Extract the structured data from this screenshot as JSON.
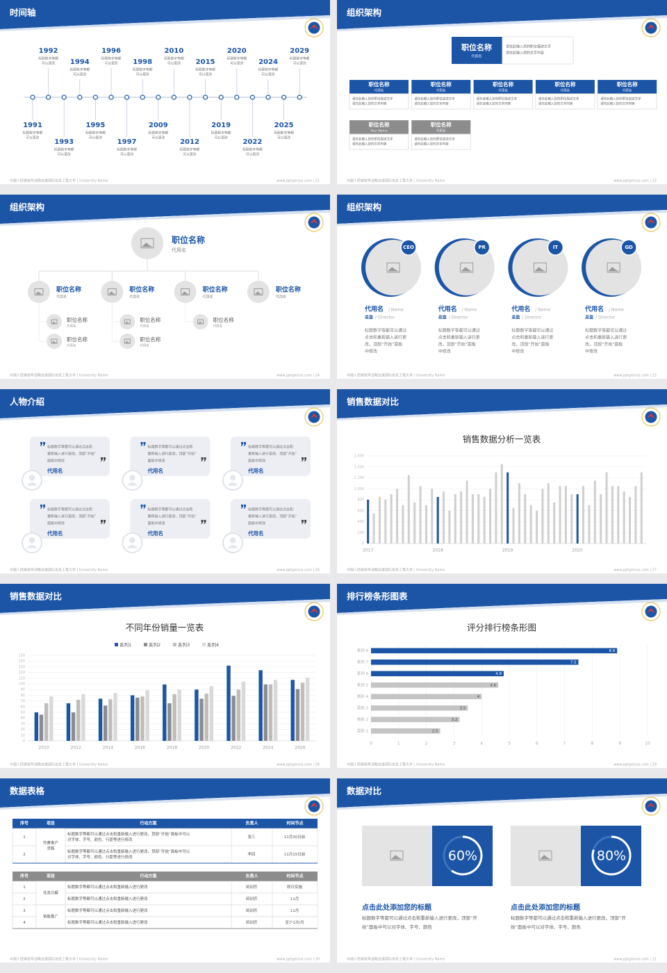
{
  "slides": [
    {
      "title": "时间轴",
      "footer": "中国人民解放军战略支援部队信息工程大学 | University Name",
      "site": "www.pptgenius.com | 22",
      "events": [
        {
          "year": "1991",
          "text": [
            "标题数字等都",
            "可以更改"
          ]
        },
        {
          "year": "1992",
          "text": [
            "标题数字等都",
            "可以更改"
          ]
        },
        {
          "year": "1993",
          "text": [
            "标题数字等都",
            "可以更改"
          ]
        },
        {
          "year": "1994",
          "text": [
            "标题数字等都",
            "可以更改"
          ]
        },
        {
          "year": "1995",
          "text": [
            "标题数字等都",
            "可以更改"
          ]
        },
        {
          "year": "1996",
          "text": [
            "标题数字等都",
            "可以更改"
          ]
        },
        {
          "year": "1997",
          "text": [
            "标题数字等都",
            "可以更改"
          ]
        },
        {
          "year": "1998",
          "text": [
            "标题数字等都",
            "可以更改"
          ]
        },
        {
          "year": "2009",
          "text": [
            "标题数字等都",
            "可以更改"
          ]
        },
        {
          "year": "2010",
          "text": [
            "标题数字等都",
            "可以更改"
          ]
        },
        {
          "year": "2012",
          "text": [
            "标题数字等都",
            "可以更改"
          ]
        },
        {
          "year": "2015",
          "text": [
            "标题数字等都",
            "可以更改"
          ]
        },
        {
          "year": "2019",
          "text": [
            "标题数字等都",
            "可以更改"
          ]
        },
        {
          "year": "2020",
          "text": [
            "标题数字等都",
            "可以更改"
          ]
        },
        {
          "year": "2022",
          "text": [
            "标题数字等都",
            "可以更改"
          ]
        },
        {
          "year": "2024",
          "text": [
            "标题数字等都",
            "可以更改"
          ]
        },
        {
          "year": "2025",
          "text": [
            "标题数字等都",
            "可以更改"
          ]
        },
        {
          "year": "2029",
          "text": [
            "标题数字等都",
            "可以更改"
          ]
        }
      ]
    },
    {
      "title": "组织架构",
      "footer": "中国人民解放军战略支援部队信息工程大学 | University Name",
      "site": "www.pptgenius.com | 23",
      "org": {
        "top": {
          "title": "职位名称",
          "name": "代用名",
          "desc": [
            "请在此输入您的职位描述文字",
            "请在此输入您的文字内容"
          ]
        },
        "rows": [
          {
            "color": "#1c55a6",
            "boxes": [
              {
                "title": "职位名称",
                "name": "代用名",
                "desc": [
                  "请在此输入您的职位描述文字",
                  "请在此输入您的文字内容"
                ]
              },
              {
                "title": "职位名称",
                "name": "代用名",
                "desc": [
                  "请在此输入您的职位描述文字",
                  "请在此输入您的文字内容"
                ]
              },
              {
                "title": "职位名称",
                "name": "代用名",
                "desc": [
                  "请在此输入您的职位描述文字",
                  "请在此输入您的文字内容"
                ]
              },
              {
                "title": "职位名称",
                "name": "代用名",
                "desc": [
                  "请在此输入您的职位描述文字",
                  "请在此输入您的文字内容"
                ]
              },
              {
                "title": "职位名称",
                "name": "代用名",
                "desc": [
                  "请在此输入您的职位描述文字",
                  "请在此输入您的文字内容"
                ]
              }
            ]
          },
          {
            "color": "#8c8c8c",
            "boxes": [
              {
                "title": "职位名称",
                "name": "Your Name",
                "desc": [
                  "请在此输入您的职位描述文字",
                  "请在此输入您的文字内容"
                ]
              },
              {
                "title": "职位名称",
                "name": "代用名",
                "desc": [
                  "请在此输入您的职位描述文字",
                  "请在此输入您的文字内容"
                ]
              }
            ]
          }
        ]
      }
    },
    {
      "title": "组织架构",
      "footer": "中国人民解放军战略支援部队信息工程大学 | University Name",
      "site": "www.pptgenius.com | 24",
      "tree": {
        "title": "职位名称",
        "name": "代用名",
        "children": [
          {
            "title": "职位名称",
            "name": "代用名",
            "children": [
              {
                "title": "职位名称",
                "name": "代用名"
              },
              {
                "title": "职位名称",
                "name": "代用名"
              }
            ]
          },
          {
            "title": "职位名称",
            "name": "代用名",
            "children": [
              {
                "title": "职位名称",
                "name": "代用名"
              },
              {
                "title": "职位名称",
                "name": "代用名"
              }
            ]
          },
          {
            "title": "职位名称",
            "name": "代用名",
            "children": [
              {
                "title": "职位名称",
                "name": "代用名"
              }
            ]
          },
          {
            "title": "职位名称",
            "name": "代用名",
            "children": []
          }
        ]
      }
    },
    {
      "title": "组织架构",
      "footer": "中国人民解放军战略支援部队信息工程大学 | University Name",
      "site": "www.pptgenius.com | 25",
      "people": [
        {
          "badge": "CEO",
          "name": "代用名",
          "name_en": "/ Name",
          "role": "总监",
          "role_en": "/ Director",
          "desc": [
            "标题数字等都可以通过",
            "点击和重新输入进行更",
            "改，顶部“开始”面板",
            "中修改"
          ]
        },
        {
          "badge": "PR",
          "name": "代用名",
          "name_en": "/ Name",
          "role": "总监",
          "role_en": "/ Director",
          "desc": [
            "标题数字等都可以通过",
            "点击和重新输入进行更",
            "改，顶部“开始”面板",
            "中修改"
          ]
        },
        {
          "badge": "IT",
          "name": "代用名",
          "name_en": "/ Name",
          "role": "总监",
          "role_en": "/ Director",
          "desc": [
            "标题数字等都可以通过",
            "点击和重新输入进行更",
            "改，顶部“开始”面板",
            "中修改"
          ]
        },
        {
          "badge": "GD",
          "name": "代用名",
          "name_en": "/ Name",
          "role": "总监",
          "role_en": "/ Director",
          "desc": [
            "标题数字等都可以通过",
            "点击和重新输入进行更",
            "改，顶部“开始”面板",
            "中修改"
          ]
        }
      ]
    },
    {
      "title": "人物介绍",
      "footer": "中国人民解放军战略支援部队信息工程大学 | University Name",
      "site": "www.pptgenius.com | 26",
      "quotes": [
        {
          "text": [
            "标题数字等都可以通过点击和",
            "重新输入进行更改，顶部“开始”",
            "面板中修改"
          ],
          "name": "代用名"
        },
        {
          "text": [
            "标题数字等都可以通过点击和",
            "重新输入进行更改，顶部“开始”",
            "面板中修改"
          ],
          "name": "代用名"
        },
        {
          "text": [
            "标题数字等都可以通过点击和",
            "重新输入进行更改，顶部“开始”",
            "面板中修改"
          ],
          "name": "代用名"
        },
        {
          "text": [
            "标题数字等都可以通过点击和",
            "重新输入进行更改，顶部“开始”",
            "面板中修改"
          ],
          "name": "代用名"
        },
        {
          "text": [
            "标题数字等都可以通过点击和",
            "重新输入进行更改，顶部“开始”",
            "面板中修改"
          ],
          "name": "代用名"
        },
        {
          "text": [
            "标题数字等都可以通过点击和",
            "重新输入进行更改，顶部“开始”",
            "面板中修改"
          ],
          "name": "代用名"
        }
      ]
    },
    {
      "title": "销售数据对比",
      "footer": "中国人民解放军战略支援部队信息工程大学 | University Name",
      "site": "www.pptgenius.com | 27",
      "chart": {
        "type": "bar",
        "title": "销售数据分析一览表",
        "categories": [
          "2017",
          null,
          null,
          null,
          null,
          null,
          null,
          null,
          null,
          null,
          null,
          null,
          "2018",
          null,
          null,
          null,
          null,
          null,
          null,
          null,
          null,
          null,
          null,
          null,
          "2019",
          null,
          null,
          null,
          null,
          null,
          null,
          null,
          null,
          null,
          null,
          null,
          "2020",
          null,
          null,
          null,
          null,
          null,
          null,
          null,
          null,
          null,
          null,
          null
        ],
        "values": [
          800,
          550,
          850,
          800,
          900,
          1000,
          700,
          1250,
          750,
          1050,
          700,
          1000,
          850,
          950,
          600,
          900,
          950,
          1150,
          900,
          900,
          850,
          1000,
          1300,
          1450,
          1300,
          650,
          1100,
          900,
          700,
          600,
          1000,
          1100,
          750,
          1050,
          1050,
          900,
          900,
          1050,
          700,
          1150,
          900,
          1300,
          1050,
          1050,
          950,
          850,
          1050,
          1300
        ],
        "colors": [
          "#1c55a6",
          "#cfcfcf",
          "#cfcfcf",
          "#cfcfcf",
          "#cfcfcf",
          "#cfcfcf",
          "#cfcfcf",
          "#cfcfcf",
          "#cfcfcf",
          "#cfcfcf",
          "#cfcfcf",
          "#cfcfcf",
          "#1c55a6",
          "#cfcfcf",
          "#cfcfcf",
          "#cfcfcf",
          "#cfcfcf",
          "#cfcfcf",
          "#cfcfcf",
          "#cfcfcf",
          "#cfcfcf",
          "#cfcfcf",
          "#cfcfcf",
          "#cfcfcf",
          "#1c55a6",
          "#cfcfcf",
          "#cfcfcf",
          "#cfcfcf",
          "#cfcfcf",
          "#cfcfcf",
          "#cfcfcf",
          "#cfcfcf",
          "#cfcfcf",
          "#cfcfcf",
          "#cfcfcf",
          "#cfcfcf",
          "#1c55a6",
          "#cfcfcf",
          "#cfcfcf",
          "#cfcfcf",
          "#cfcfcf",
          "#cfcfcf",
          "#cfcfcf",
          "#cfcfcf",
          "#cfcfcf",
          "#cfcfcf",
          "#cfcfcf",
          "#cfcfcf"
        ],
        "ylim": [
          0,
          1600
        ],
        "yticks": [
          0,
          200,
          400,
          600,
          800,
          {
            "value": 1000,
            "label": "1,000"
          },
          {
            "value": 1200,
            "label": "1,200"
          },
          {
            "value": 1400,
            "label": "1,400"
          },
          {
            "value": 1600,
            "label": "1,600"
          }
        ],
        "grid": true
      }
    },
    {
      "title": "销售数据对比",
      "footer": "中国人民解放军战略支援部队信息工程大学 | University Name",
      "site": "www.pptgenius.com | 28",
      "chart": {
        "type": "bar",
        "title": "不同年份销量一览表",
        "categories": [
          "2010",
          "2012",
          "2014",
          "2016",
          "2018",
          "2020",
          "2022",
          "2024",
          "2026"
        ],
        "series": [
          {
            "name": "系列1",
            "color": "#1c55a6",
            "values": [
              50,
              66,
              74,
              80,
              99,
              90,
              132,
              124,
              107
            ]
          },
          {
            "name": "系列2",
            "color": "#8c8c8c",
            "values": [
              46,
              50,
              62,
              76,
              66,
              74,
              79,
              99,
              91
            ]
          },
          {
            "name": "系列3",
            "color": "#bdbdbd",
            "values": [
              66,
              72,
              73,
              78,
              82,
              83,
              90,
              99,
              102
            ]
          },
          {
            "name": "系列4",
            "color": "#d9d9d9",
            "values": [
              78,
              82,
              84,
              89,
              90,
              96,
              104,
              107,
              111
            ]
          }
        ],
        "ylim": [
          0,
          150
        ],
        "yticks": [
          0,
          10,
          20,
          30,
          40,
          50,
          60,
          70,
          80,
          90,
          100,
          110,
          120,
          130,
          140,
          150
        ],
        "grid": true
      }
    },
    {
      "title": "排行榜条形图表",
      "footer": "中国人民解放军战略支援部队信息工程大学 | University Name",
      "site": "www.pptgenius.com | 29",
      "chart": {
        "type": "barh",
        "title": "评分排行榜条形图",
        "categories": [
          "类别 1",
          "类别 2",
          "类别 3",
          "类别 4",
          "系列 5",
          "系列 6",
          "系列 7",
          "系列 8"
        ],
        "values": [
          2.5,
          3.2,
          3.5,
          4,
          4.6,
          4.8,
          7.5,
          8.9
        ],
        "colors": [
          "#c4c4c4",
          "#c4c4c4",
          "#c4c4c4",
          "#c4c4c4",
          "#c4c4c4",
          "#1c55a6",
          "#1c55a6",
          "#1c55a6"
        ],
        "xlim": [
          0,
          10
        ],
        "xticks": [
          0,
          1,
          2,
          3,
          4,
          5,
          6,
          7,
          8,
          9,
          10
        ],
        "grid": true
      }
    },
    {
      "title": "数据表格",
      "footer": "中国人民解放军战略支援部队信息工程大学 | University Name",
      "site": "www.pptgenius.com | 30",
      "tables": [
        {
          "color": "#1c55a6",
          "header": [
            "序号",
            "项目",
            "行动方案",
            "负责人",
            "时间节点"
          ],
          "groups": [
            {
              "project": [
                "完善客户",
                "流程"
              ],
              "rows": [
                {
                  "no": "1",
                  "action": [
                    "标题数字等都可以通过点击和重新输入进行更改，顶部“开始”面板中可以",
                    "对字体、字号、颜色、行距等进行修改"
                  ],
                  "owner": "张三",
                  "due": "11月30日前"
                },
                {
                  "no": "2",
                  "action": [
                    "标题数字等都可以通过点击和重新输入进行更改，顶部“开始”面板中可以",
                    "对字体、字号、颜色、行距等进行修改"
                  ],
                  "owner": "李四",
                  "due": "11月15日前"
                }
              ]
            }
          ]
        },
        {
          "color": "#8c8c8c",
          "header": [
            "序号",
            "项目",
            "行动方案",
            "负责人",
            "时间节点"
          ],
          "groups": [
            {
              "project": [
                "任务分解"
              ],
              "rows": [
                {
                  "no": "1",
                  "action": [
                    "标题数字等都可以通过点击和重新输入进行更改"
                  ],
                  "owner": "闵训厉",
                  "due": "即日实施"
                },
                {
                  "no": "2",
                  "action": [
                    "标题数字等都可以通过点击和重新输入进行更改"
                  ],
                  "owner": "闵训厉",
                  "due": "11月"
                }
              ]
            },
            {
              "project": [
                "销售推广"
              ],
              "rows": [
                {
                  "no": "3",
                  "action": [
                    "标题数字等都可以通过点击和重新输入进行更改"
                  ],
                  "owner": "闵训厉",
                  "due": "11月"
                },
                {
                  "no": "4",
                  "action": [
                    "标题数字等都可以通过点击和重新输入进行更改"
                  ],
                  "owner": "闵训厉",
                  "due": "至少1次/月"
                }
              ]
            }
          ]
        }
      ]
    },
    {
      "title": "数据对比",
      "footer": "中国人民解放军战略支援部队信息工程大学 | University Name",
      "site": "www.pptgenius.com | 31",
      "stats": [
        {
          "value": 60,
          "label": "60%",
          "title": "点击此处添加您的标题",
          "desc": [
            "标题数字等都可以通过点击和重新输入进行更改，顶部“开",
            "始”面板中可以对字体、字号、颜色"
          ]
        },
        {
          "value": 80,
          "label": "80%",
          "title": "点击此处添加您的标题",
          "desc": [
            "标题数字等都可以通过点击和重新输入进行更改，顶部“开",
            "始”面板中可以对字体、字号、颜色"
          ]
        }
      ]
    }
  ]
}
